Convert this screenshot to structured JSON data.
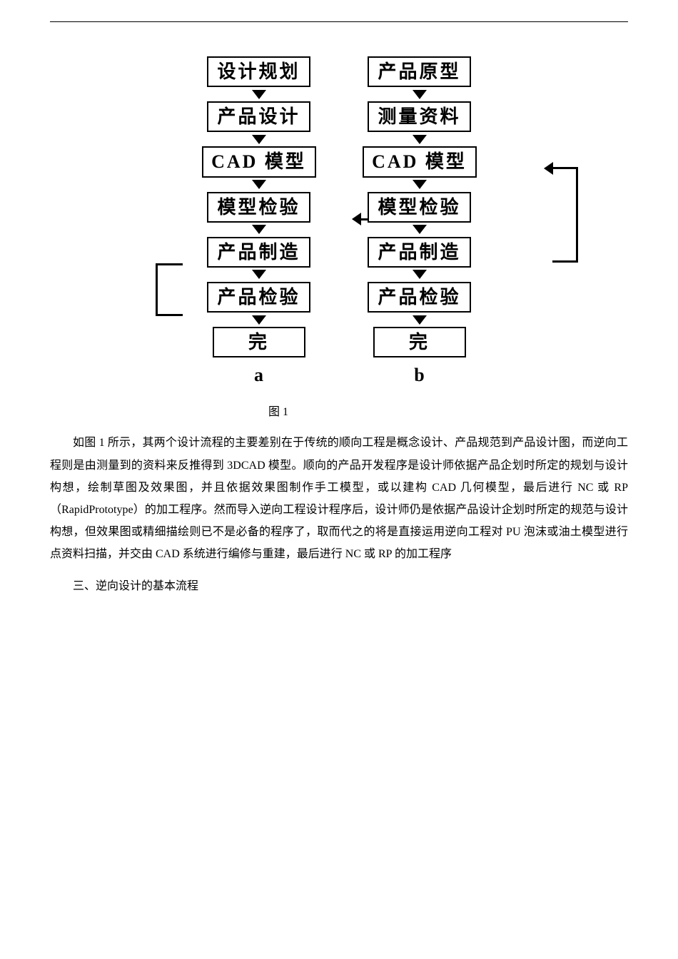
{
  "flowchart": {
    "column_a": {
      "label": "a",
      "boxes": [
        "设计规划",
        "产品设计",
        "CAD 模型",
        "模型检验",
        "产品制造",
        "产品检验",
        "完"
      ]
    },
    "column_b": {
      "label": "b",
      "boxes": [
        "产品原型",
        "测量资料",
        "CAD 模型",
        "模型检验",
        "产品制造",
        "产品检验",
        "完"
      ]
    }
  },
  "caption": "图 1",
  "paragraph1": "如图 1 所示，其两个设计流程的主要差别在于传统的顺向工程是概念设计、产品规范到产品设计图，而逆向工程则是由测量到的资料来反推得到 3DCAD 模型。顺向的产品开发程序是设计师依据产品企划时所定的规划与设计构想，绘制草图及效果图，并且依据效果图制作手工模型，或以建构 CAD 几何模型，最后进行 NC 或 RP（RapidPrototype）的加工程序。然而导入逆向工程设计程序后，设计师仍是依据产品设计企划时所定的规范与设计构想，但效果图或精细描绘则已不是必备的程序了，取而代之的将是直接运用逆向工程对 PU 泡沫或油土模型进行点资料扫描，并交由 CAD 系统进行编修与重建，最后进行 NC 或 RP 的加工程序",
  "section_heading": "三、逆向设计的基本流程"
}
